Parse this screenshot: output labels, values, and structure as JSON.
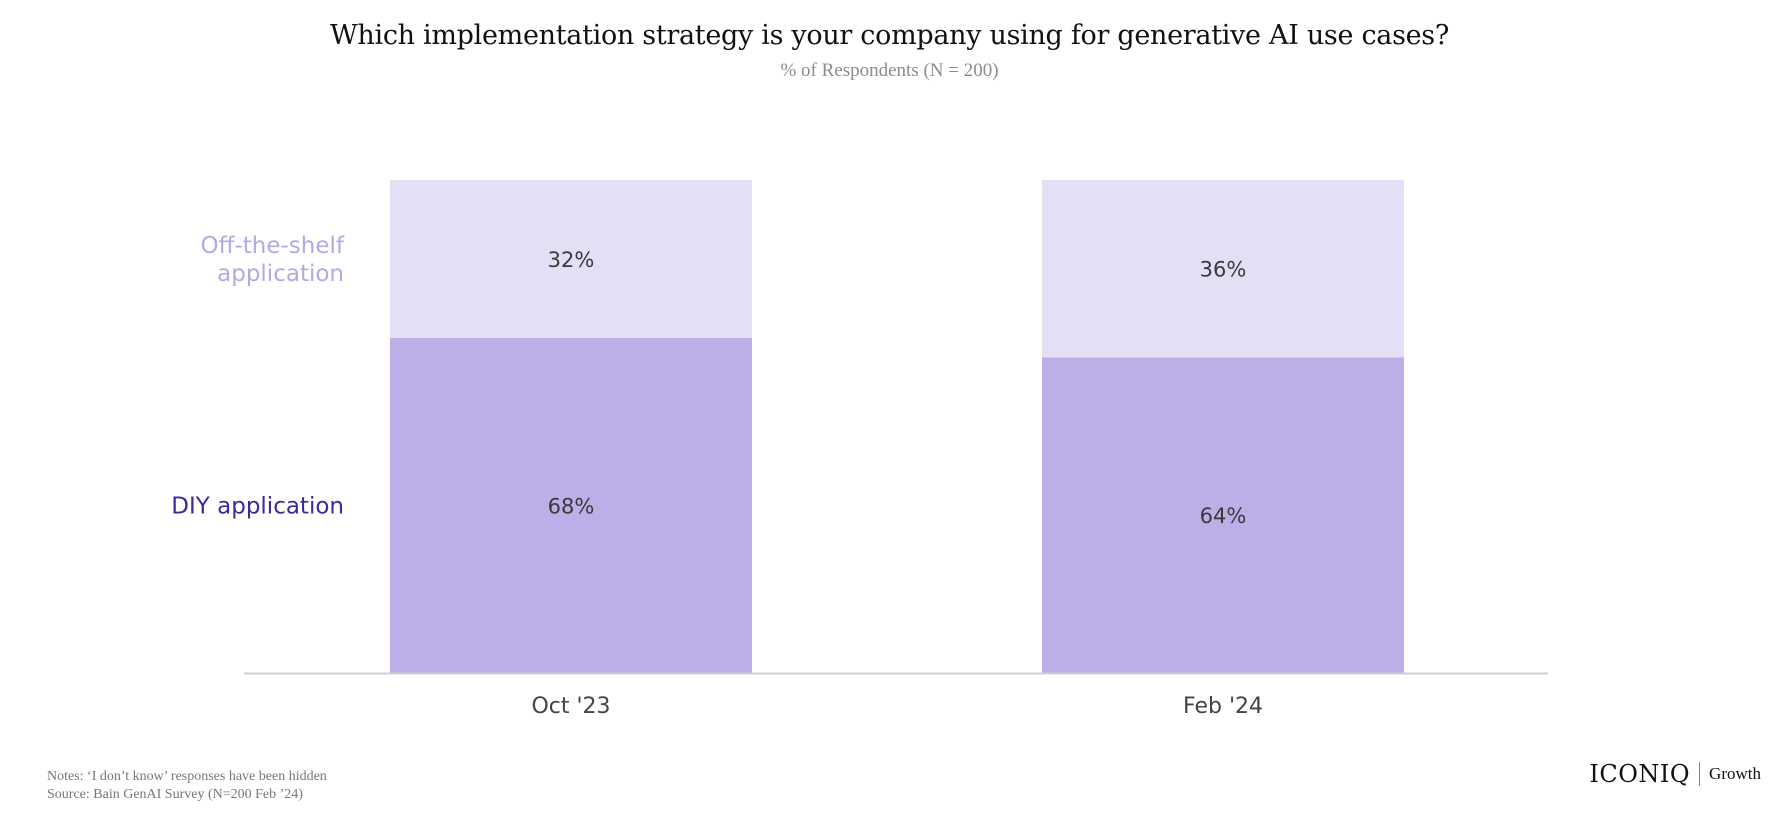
{
  "header": {
    "title": "Which implementation strategy is your company using for generative AI use cases?",
    "subtitle": "% of Respondents (N = 200)"
  },
  "footer": {
    "notes": "Notes: ‘I don’t know’ responses have been hidden",
    "source": "Source: Bain GenAI Survey (N=200 Feb ’24)"
  },
  "brand": {
    "name": "ICONIQ",
    "sub": "Growth"
  },
  "colors": {
    "off_the_shelf_fill": "#e4dff5",
    "diy_fill": "#bcaee7",
    "off_the_shelf_label": "#b6a8e4",
    "diy_label": "#3b2a9b",
    "value_label": "#3a3a3a",
    "axis": "#cfcfcf",
    "tick_label": "#444444"
  },
  "chart_data": {
    "type": "bar",
    "stacked": true,
    "categories": [
      "Oct '23",
      "Feb '24"
    ],
    "series": [
      {
        "name": "DIY application",
        "values": [
          68,
          64
        ],
        "labels": [
          "68%",
          "64%"
        ]
      },
      {
        "name": "Off-the-shelf application",
        "values": [
          32,
          36
        ],
        "labels": [
          "32%",
          "36%"
        ]
      }
    ],
    "series_label_lines": [
      [
        "DIY application"
      ],
      [
        "Off-the-shelf",
        "application"
      ]
    ],
    "ylim": [
      0,
      100
    ],
    "unit": "%",
    "grid": false,
    "legend": "left, inline labels"
  }
}
